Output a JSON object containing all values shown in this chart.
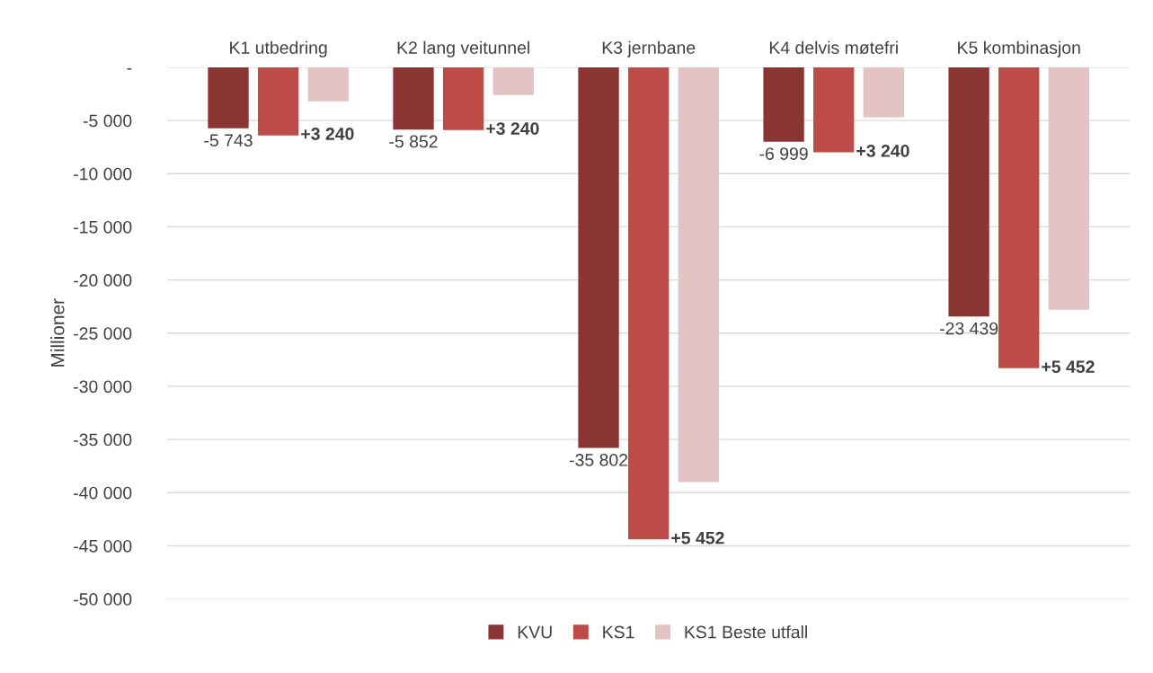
{
  "chart_data": {
    "type": "bar",
    "ylabel": "Millioner",
    "categories": [
      "K1 utbedring",
      "K2 lang veitunnel",
      "K3 jernbane",
      "K4 delvis møtefri",
      "K5 kombinasjon"
    ],
    "series": [
      {
        "name": "KVU",
        "color": "#8b3532",
        "values": [
          -5743,
          -5852,
          -35802,
          -6999,
          -23439
        ],
        "value_labels": [
          "-5 743",
          "-5 852",
          "-35 802",
          "-6 999",
          "-23 439"
        ]
      },
      {
        "name": "KS1",
        "color": "#bd4b47",
        "values": [
          -6400,
          -5900,
          -44400,
          -8000,
          -28300
        ]
      },
      {
        "name": "KS1 Beste utfall",
        "color": "#e3c3c3",
        "values": [
          -3200,
          -2600,
          -39000,
          -4700,
          -22800
        ]
      }
    ],
    "annotations": [
      {
        "text": "+3 240",
        "x": "K1 utbedring",
        "y": -6400
      },
      {
        "text": "+3 240",
        "x": "K2 lang veitunnel",
        "y": -5900
      },
      {
        "text": "+5 452",
        "x": "K3 jernbane",
        "y": -44400
      },
      {
        "text": "+3 240",
        "x": "K4 delvis møtefri",
        "y": -8000
      },
      {
        "text": "+5 452",
        "x": "K5 kombinasjon",
        "y": -28300
      }
    ],
    "ylim": [
      -50000,
      0
    ],
    "yticks": [
      {
        "value": 0,
        "label": "-"
      },
      {
        "value": -5000,
        "label": "-5 000"
      },
      {
        "value": -10000,
        "label": "-10 000"
      },
      {
        "value": -15000,
        "label": "-15 000"
      },
      {
        "value": -20000,
        "label": "-20 000"
      },
      {
        "value": -25000,
        "label": "-25 000"
      },
      {
        "value": -30000,
        "label": "-30 000"
      },
      {
        "value": -35000,
        "label": "-35 000"
      },
      {
        "value": -40000,
        "label": "-40 000"
      },
      {
        "value": -45000,
        "label": "-45 000"
      },
      {
        "value": -50000,
        "label": "-50 000"
      }
    ],
    "grid": "y",
    "legend": "bottom"
  }
}
